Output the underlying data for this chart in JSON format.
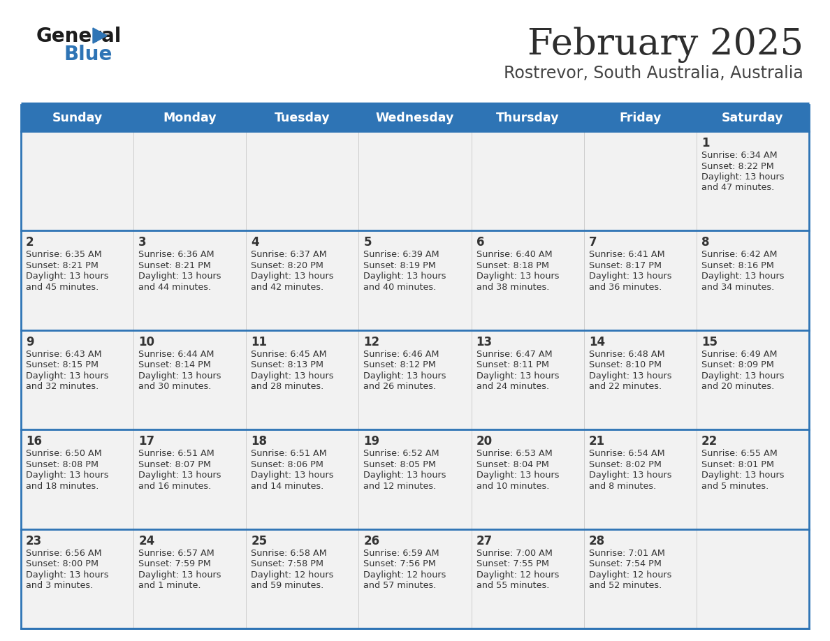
{
  "title": "February 2025",
  "subtitle": "Rostrevor, South Australia, Australia",
  "days_of_week": [
    "Sunday",
    "Monday",
    "Tuesday",
    "Wednesday",
    "Thursday",
    "Friday",
    "Saturday"
  ],
  "header_bg": "#2E74B5",
  "header_text_color": "#FFFFFF",
  "cell_bg": "#F2F2F2",
  "border_color": "#2E74B5",
  "text_color": "#333333",
  "title_color": "#2d2d2d",
  "subtitle_color": "#444444",
  "calendar_data": [
    [
      null,
      null,
      null,
      null,
      null,
      null,
      {
        "day": "1",
        "sunrise": "6:34 AM",
        "sunset": "8:22 PM",
        "daylight_line1": "Daylight: 13 hours",
        "daylight_line2": "and 47 minutes."
      }
    ],
    [
      {
        "day": "2",
        "sunrise": "6:35 AM",
        "sunset": "8:21 PM",
        "daylight_line1": "Daylight: 13 hours",
        "daylight_line2": "and 45 minutes."
      },
      {
        "day": "3",
        "sunrise": "6:36 AM",
        "sunset": "8:21 PM",
        "daylight_line1": "Daylight: 13 hours",
        "daylight_line2": "and 44 minutes."
      },
      {
        "day": "4",
        "sunrise": "6:37 AM",
        "sunset": "8:20 PM",
        "daylight_line1": "Daylight: 13 hours",
        "daylight_line2": "and 42 minutes."
      },
      {
        "day": "5",
        "sunrise": "6:39 AM",
        "sunset": "8:19 PM",
        "daylight_line1": "Daylight: 13 hours",
        "daylight_line2": "and 40 minutes."
      },
      {
        "day": "6",
        "sunrise": "6:40 AM",
        "sunset": "8:18 PM",
        "daylight_line1": "Daylight: 13 hours",
        "daylight_line2": "and 38 minutes."
      },
      {
        "day": "7",
        "sunrise": "6:41 AM",
        "sunset": "8:17 PM",
        "daylight_line1": "Daylight: 13 hours",
        "daylight_line2": "and 36 minutes."
      },
      {
        "day": "8",
        "sunrise": "6:42 AM",
        "sunset": "8:16 PM",
        "daylight_line1": "Daylight: 13 hours",
        "daylight_line2": "and 34 minutes."
      }
    ],
    [
      {
        "day": "9",
        "sunrise": "6:43 AM",
        "sunset": "8:15 PM",
        "daylight_line1": "Daylight: 13 hours",
        "daylight_line2": "and 32 minutes."
      },
      {
        "day": "10",
        "sunrise": "6:44 AM",
        "sunset": "8:14 PM",
        "daylight_line1": "Daylight: 13 hours",
        "daylight_line2": "and 30 minutes."
      },
      {
        "day": "11",
        "sunrise": "6:45 AM",
        "sunset": "8:13 PM",
        "daylight_line1": "Daylight: 13 hours",
        "daylight_line2": "and 28 minutes."
      },
      {
        "day": "12",
        "sunrise": "6:46 AM",
        "sunset": "8:12 PM",
        "daylight_line1": "Daylight: 13 hours",
        "daylight_line2": "and 26 minutes."
      },
      {
        "day": "13",
        "sunrise": "6:47 AM",
        "sunset": "8:11 PM",
        "daylight_line1": "Daylight: 13 hours",
        "daylight_line2": "and 24 minutes."
      },
      {
        "day": "14",
        "sunrise": "6:48 AM",
        "sunset": "8:10 PM",
        "daylight_line1": "Daylight: 13 hours",
        "daylight_line2": "and 22 minutes."
      },
      {
        "day": "15",
        "sunrise": "6:49 AM",
        "sunset": "8:09 PM",
        "daylight_line1": "Daylight: 13 hours",
        "daylight_line2": "and 20 minutes."
      }
    ],
    [
      {
        "day": "16",
        "sunrise": "6:50 AM",
        "sunset": "8:08 PM",
        "daylight_line1": "Daylight: 13 hours",
        "daylight_line2": "and 18 minutes."
      },
      {
        "day": "17",
        "sunrise": "6:51 AM",
        "sunset": "8:07 PM",
        "daylight_line1": "Daylight: 13 hours",
        "daylight_line2": "and 16 minutes."
      },
      {
        "day": "18",
        "sunrise": "6:51 AM",
        "sunset": "8:06 PM",
        "daylight_line1": "Daylight: 13 hours",
        "daylight_line2": "and 14 minutes."
      },
      {
        "day": "19",
        "sunrise": "6:52 AM",
        "sunset": "8:05 PM",
        "daylight_line1": "Daylight: 13 hours",
        "daylight_line2": "and 12 minutes."
      },
      {
        "day": "20",
        "sunrise": "6:53 AM",
        "sunset": "8:04 PM",
        "daylight_line1": "Daylight: 13 hours",
        "daylight_line2": "and 10 minutes."
      },
      {
        "day": "21",
        "sunrise": "6:54 AM",
        "sunset": "8:02 PM",
        "daylight_line1": "Daylight: 13 hours",
        "daylight_line2": "and 8 minutes."
      },
      {
        "day": "22",
        "sunrise": "6:55 AM",
        "sunset": "8:01 PM",
        "daylight_line1": "Daylight: 13 hours",
        "daylight_line2": "and 5 minutes."
      }
    ],
    [
      {
        "day": "23",
        "sunrise": "6:56 AM",
        "sunset": "8:00 PM",
        "daylight_line1": "Daylight: 13 hours",
        "daylight_line2": "and 3 minutes."
      },
      {
        "day": "24",
        "sunrise": "6:57 AM",
        "sunset": "7:59 PM",
        "daylight_line1": "Daylight: 13 hours",
        "daylight_line2": "and 1 minute."
      },
      {
        "day": "25",
        "sunrise": "6:58 AM",
        "sunset": "7:58 PM",
        "daylight_line1": "Daylight: 12 hours",
        "daylight_line2": "and 59 minutes."
      },
      {
        "day": "26",
        "sunrise": "6:59 AM",
        "sunset": "7:56 PM",
        "daylight_line1": "Daylight: 12 hours",
        "daylight_line2": "and 57 minutes."
      },
      {
        "day": "27",
        "sunrise": "7:00 AM",
        "sunset": "7:55 PM",
        "daylight_line1": "Daylight: 12 hours",
        "daylight_line2": "and 55 minutes."
      },
      {
        "day": "28",
        "sunrise": "7:01 AM",
        "sunset": "7:54 PM",
        "daylight_line1": "Daylight: 12 hours",
        "daylight_line2": "and 52 minutes."
      },
      null
    ]
  ]
}
